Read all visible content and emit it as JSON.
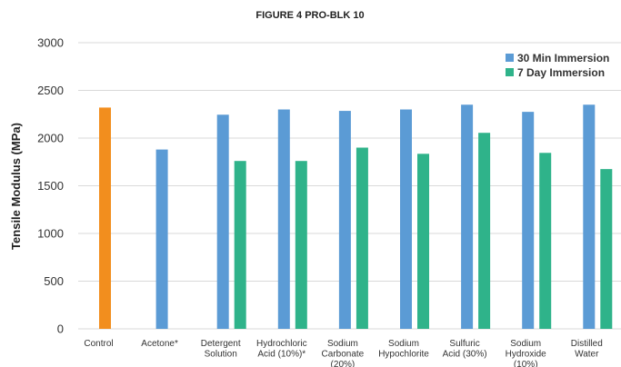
{
  "chart_data": {
    "type": "bar",
    "title": "FIGURE 4 PRO-BLK 10",
    "ylabel": "Tensile Modulus (MPa)",
    "xlabel": "",
    "ylim": [
      0,
      3000
    ],
    "yticks": [
      0,
      500,
      1000,
      1500,
      2000,
      2500,
      3000
    ],
    "grid": true,
    "legend_position": "top-right",
    "categories": [
      [
        "Control"
      ],
      [
        "Acetone*"
      ],
      [
        "Detergent",
        "Solution"
      ],
      [
        "Hydrochloric",
        "Acid (10%)*"
      ],
      [
        "Sodium",
        "Carbonate",
        "(20%)"
      ],
      [
        "Sodium",
        "Hypochlorite"
      ],
      [
        "Sulfuric",
        "Acid (30%)"
      ],
      [
        "Sodium",
        "Hydroxide",
        "(10%)"
      ],
      [
        "Distilled",
        "Water"
      ]
    ],
    "control": {
      "category_index": 0,
      "value": 2320,
      "color": "#f28e1e"
    },
    "series": [
      {
        "name": "30 Min Immersion",
        "color": "#5b9bd5",
        "values": [
          null,
          1880,
          2245,
          2300,
          2285,
          2300,
          2350,
          2275,
          2350
        ]
      },
      {
        "name": "7 Day Immersion",
        "color": "#2fb38a",
        "values": [
          null,
          null,
          1760,
          1760,
          1900,
          1835,
          2055,
          1845,
          1675
        ]
      }
    ]
  }
}
